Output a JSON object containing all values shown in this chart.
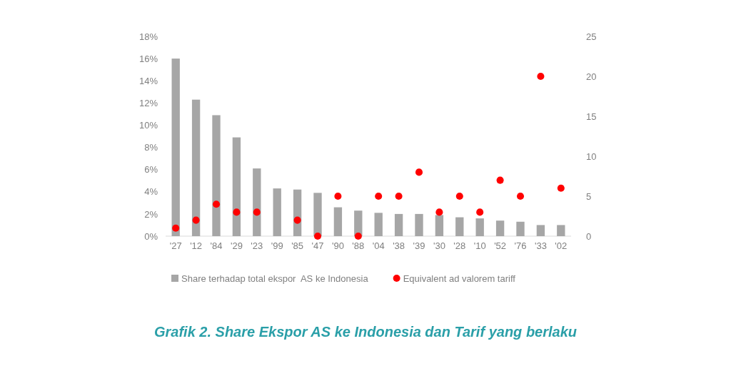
{
  "chart_data": {
    "type": "bar",
    "title": "Grafik 2. Share Ekspor AS ke Indonesia dan Tarif yang berlaku",
    "categories": [
      "'27",
      "'12",
      "'84",
      "'29",
      "'23",
      "'99",
      "'85",
      "'47",
      "'90",
      "'88",
      "'04",
      "'38",
      "'39",
      "'30",
      "'28",
      "'10",
      "'52",
      "'76",
      "'33",
      "'02"
    ],
    "series": [
      {
        "name": "Share terhadap total ekspor  AS ke Indonesia",
        "color": "#a6a6a6",
        "values": [
          16,
          12.3,
          10.9,
          8.9,
          6.1,
          4.3,
          4.2,
          3.9,
          2.6,
          2.3,
          2.1,
          2.0,
          2.0,
          1.9,
          1.7,
          1.6,
          1.4,
          1.3,
          1.0,
          1.0
        ]
      },
      {
        "name": "Equivalent ad valorem tariff",
        "type": "scatter",
        "axis": "y2",
        "color": "#ff0000",
        "marker": "circle",
        "values": [
          1,
          2,
          4,
          3,
          3,
          null,
          2,
          0,
          5,
          0,
          5,
          5,
          8,
          3,
          5,
          3,
          7,
          5,
          20,
          6
        ]
      }
    ],
    "ylim": [
      0,
      18
    ],
    "yticks": [
      {
        "value": 0,
        "label": "0%"
      },
      {
        "value": 2,
        "label": "2%"
      },
      {
        "value": 4,
        "label": "4%"
      },
      {
        "value": 6,
        "label": "6%"
      },
      {
        "value": 8,
        "label": "8%"
      },
      {
        "value": 10,
        "label": "10%"
      },
      {
        "value": 12,
        "label": "12%"
      },
      {
        "value": 14,
        "label": "14%"
      },
      {
        "value": 16,
        "label": "16%"
      },
      {
        "value": 18,
        "label": "18%"
      }
    ],
    "y2lim": [
      0,
      25
    ],
    "y2ticks": [
      0,
      5,
      10,
      15,
      20,
      25
    ],
    "legend": "bottom"
  }
}
